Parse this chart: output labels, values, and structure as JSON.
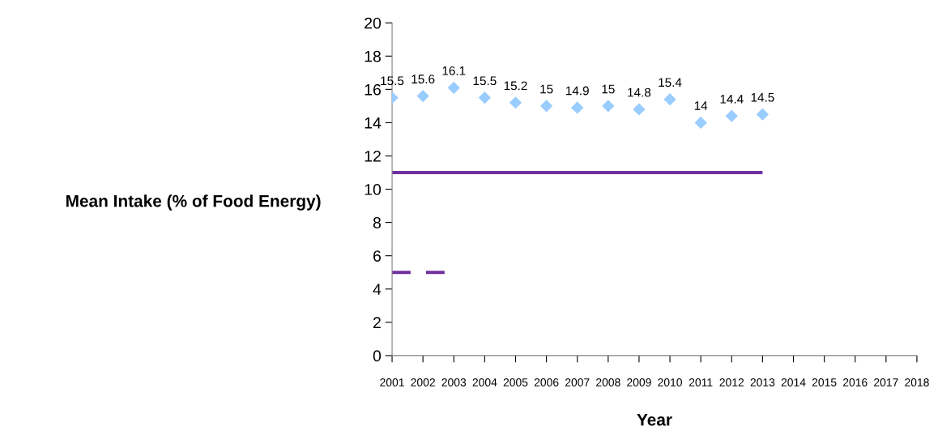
{
  "chart_data": {
    "type": "scatter",
    "xlabel": "Year",
    "ylabel": "Mean Intake (% of Food Energy)",
    "xlim": [
      2001,
      2018
    ],
    "xticks": [
      2001,
      2002,
      2003,
      2004,
      2005,
      2006,
      2007,
      2008,
      2009,
      2010,
      2011,
      2012,
      2013,
      2014,
      2015,
      2016,
      2017,
      2018
    ],
    "ylim": [
      0,
      20
    ],
    "yticks": [
      0,
      2,
      4,
      6,
      8,
      10,
      12,
      14,
      16,
      18,
      20
    ],
    "grid": false,
    "legend": false,
    "series": [
      {
        "type": "scatter",
        "color": "#99ccff",
        "marker": "diamond",
        "data_labels": true,
        "x": [
          2001,
          2002,
          2003,
          2004,
          2005,
          2006,
          2007,
          2008,
          2009,
          2010,
          2011,
          2012,
          2013
        ],
        "values": [
          15.5,
          15.6,
          16.1,
          15.5,
          15.2,
          15,
          14.9,
          15,
          14.8,
          15.4,
          14,
          14.4,
          14.5
        ]
      },
      {
        "type": "line",
        "color": "#7030a0",
        "line_style": "solid",
        "marker": "none",
        "x": [
          2001,
          2013
        ],
        "values": [
          11,
          11
        ]
      },
      {
        "type": "line",
        "color": "#7030a0",
        "line_style": "dashed",
        "marker": "none",
        "x": [
          2001,
          2002.7
        ],
        "values": [
          5,
          5
        ]
      }
    ]
  }
}
